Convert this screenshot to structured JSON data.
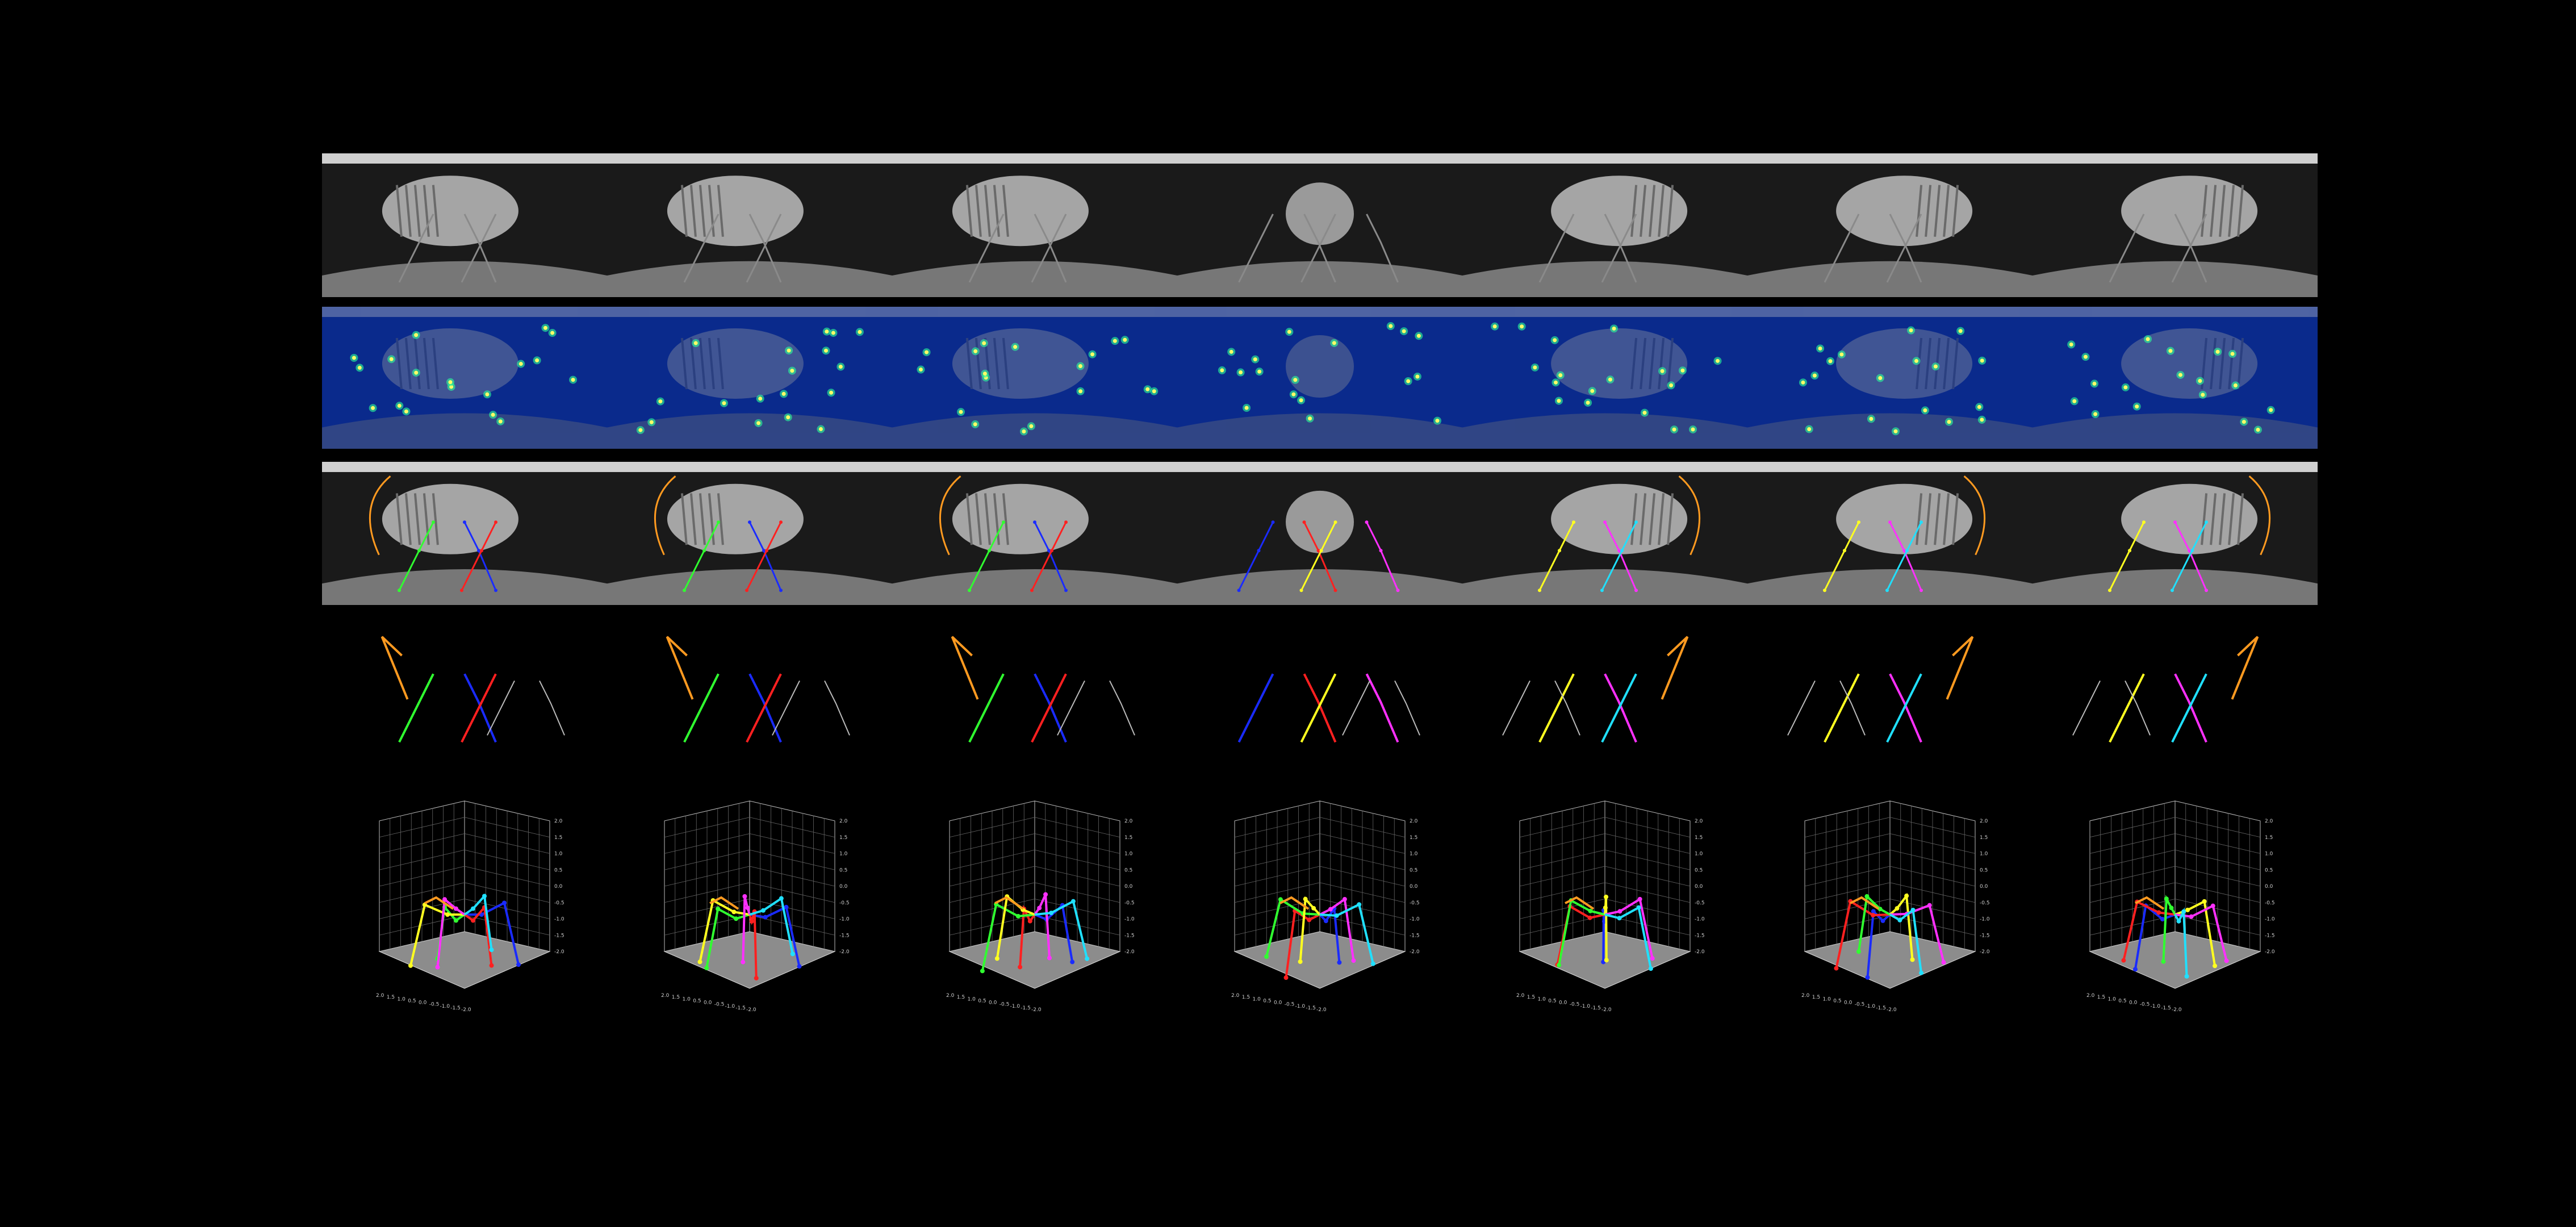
{
  "figure": {
    "columns": 7,
    "rows": [
      "camera-frames",
      "heatmaps",
      "2d-pose-overlay",
      "2d-pose",
      "3d-pose"
    ]
  },
  "colors": {
    "background": "#000000",
    "heatmap_bg": "#0a2a8c",
    "leg_colors": [
      "#1a2bff",
      "#ff2020",
      "#30ff30",
      "#ffff20",
      "#ff30ff",
      "#20e0ff"
    ],
    "antenna": "#ff9a20",
    "inactive": "#bbbbbb",
    "keypoint": "#ffff66"
  },
  "views": [
    {
      "side": "left",
      "legs": [
        2,
        0,
        1
      ]
    },
    {
      "side": "left",
      "legs": [
        2,
        0,
        1
      ]
    },
    {
      "side": "left",
      "legs": [
        2,
        0,
        1
      ]
    },
    {
      "side": "front",
      "legs": [
        0,
        1,
        3,
        4
      ]
    },
    {
      "side": "right",
      "legs": [
        3,
        4,
        5
      ]
    },
    {
      "side": "right",
      "legs": [
        3,
        4,
        5
      ]
    },
    {
      "side": "right",
      "legs": [
        3,
        4,
        5
      ]
    }
  ],
  "plot3d": {
    "ticks": [
      "2.0",
      "1.5",
      "1.0",
      "0.5",
      "0.0",
      "-0.5",
      "-1.0",
      "-1.5",
      "-2.0"
    ],
    "z_ticks": [
      "2.0",
      "1.5",
      "1.0",
      "0.5",
      "0.0",
      "-0.5",
      "-1.0",
      "-1.5",
      "-2.0"
    ]
  }
}
